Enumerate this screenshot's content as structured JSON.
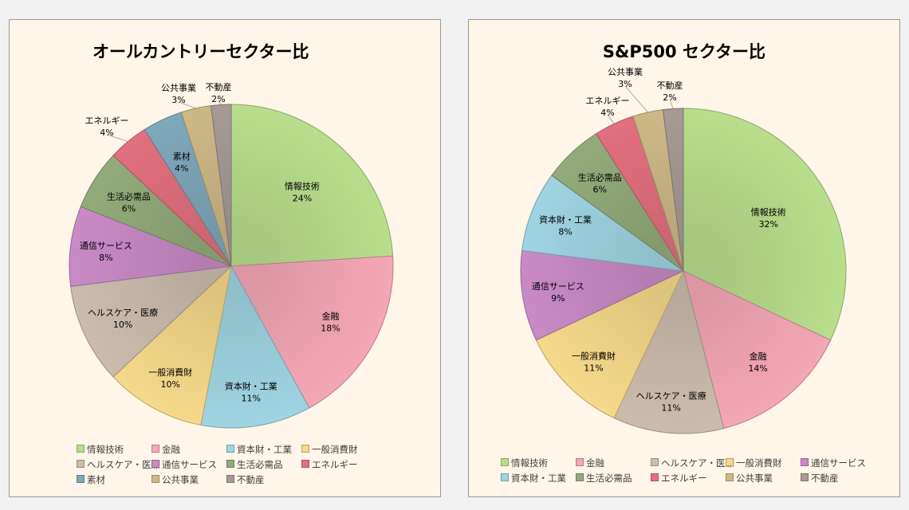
{
  "colors": {
    "情報技術": "#b8de8c",
    "金融": "#f4a7b6",
    "資本財・工業": "#9fd4e2",
    "一般消費財": "#f6d98a",
    "ヘルスケア・医療": "#cbbcad",
    "通信サービス": "#c98ac6",
    "生活必需品": "#93ab7a",
    "エネルギー": "#e2707e",
    "素材": "#7fa8bb",
    "公共事業": "#cdb887",
    "不動産": "#a79a95"
  },
  "chart_data": [
    {
      "type": "pie",
      "title": "オールカントリーセクター比",
      "slices": [
        {
          "label": "情報技術",
          "value": 24,
          "display": "24%"
        },
        {
          "label": "金融",
          "value": 18,
          "display": "18%"
        },
        {
          "label": "資本財・工業",
          "value": 11,
          "display": "11%"
        },
        {
          "label": "一般消費財",
          "value": 10,
          "display": "10%"
        },
        {
          "label": "ヘルスケア・医療",
          "value": 10,
          "display": "10%"
        },
        {
          "label": "通信サービス",
          "value": 8,
          "display": "8%"
        },
        {
          "label": "生活必需品",
          "value": 6,
          "display": "6%"
        },
        {
          "label": "エネルギー",
          "value": 4,
          "display": "4%"
        },
        {
          "label": "素材",
          "value": 4,
          "display": "4%"
        },
        {
          "label": "公共事業",
          "value": 3,
          "display": "3%"
        },
        {
          "label": "不動産",
          "value": 2,
          "display": "2%"
        }
      ],
      "legend": [
        "情報技術",
        "金融",
        "資本財・工業",
        "一般消費財",
        "ヘルスケア・医療",
        "通信サービス",
        "生活必需品",
        "エネルギー",
        "素材",
        "公共事業",
        "不動産"
      ],
      "legend_placement": "bottom"
    },
    {
      "type": "pie",
      "title": "S&P500 セクター比",
      "slices": [
        {
          "label": "情報技術",
          "value": 32,
          "display": "32%"
        },
        {
          "label": "金融",
          "value": 14,
          "display": "14%"
        },
        {
          "label": "ヘルスケア・医療",
          "value": 11,
          "display": "11%"
        },
        {
          "label": "一般消費財",
          "value": 11,
          "display": "11%"
        },
        {
          "label": "通信サービス",
          "value": 9,
          "display": "9%"
        },
        {
          "label": "資本財・工業",
          "value": 8,
          "display": "8%"
        },
        {
          "label": "生活必需品",
          "value": 6,
          "display": "6%"
        },
        {
          "label": "エネルギー",
          "value": 4,
          "display": "4%"
        },
        {
          "label": "公共事業",
          "value": 3,
          "display": "3%"
        },
        {
          "label": "不動産",
          "value": 2,
          "display": "2%"
        }
      ],
      "legend": [
        "情報技術",
        "金融",
        "ヘルスケア・医療",
        "一般消費財",
        "通信サービス",
        "資本財・工業",
        "生活必需品",
        "エネルギー",
        "公共事業",
        "不動産"
      ],
      "legend_placement": "bottom"
    }
  ]
}
